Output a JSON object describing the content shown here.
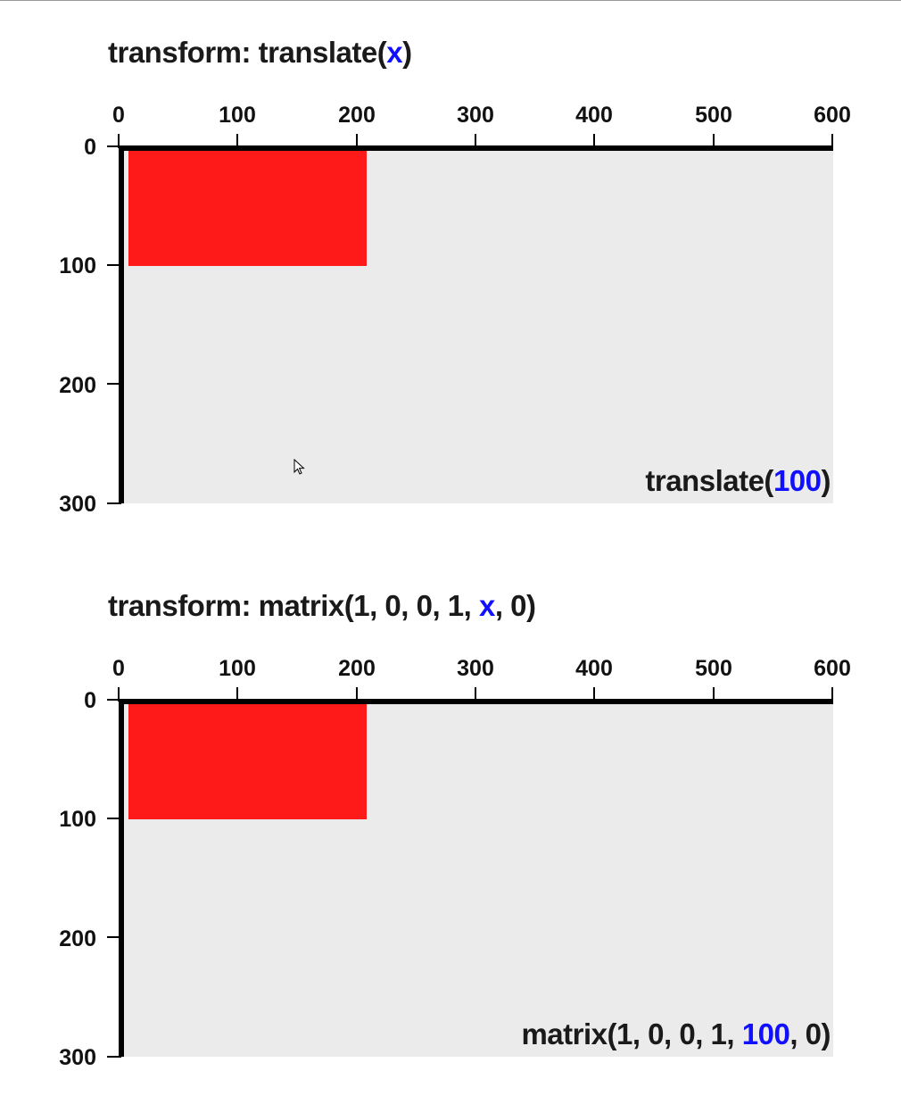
{
  "panels": [
    {
      "title_parts": [
        "transform: translate(",
        "x",
        ")"
      ],
      "caption_parts": [
        "translate(",
        "100",
        ")"
      ],
      "x_ticks": [
        "0",
        "100",
        "200",
        "300",
        "400",
        "500",
        "600"
      ],
      "y_ticks": [
        "0",
        "100",
        "200",
        "300"
      ]
    },
    {
      "title_parts": [
        "transform: matrix(1, 0, 0, 1, ",
        "x",
        ", 0)"
      ],
      "caption_parts": [
        "matrix(1, 0, 0, 1, ",
        "100",
        ", 0)"
      ],
      "x_ticks": [
        "0",
        "100",
        "200",
        "300",
        "400",
        "500",
        "600"
      ],
      "y_ticks": [
        "0",
        "100",
        "200",
        "300"
      ]
    }
  ],
  "colors": {
    "shape": "#ff1a1a",
    "variable": "#1010ff",
    "plot_background": "#ebebeb",
    "axis": "#000000"
  },
  "icons": {
    "cursor": "mouse-pointer-icon"
  }
}
